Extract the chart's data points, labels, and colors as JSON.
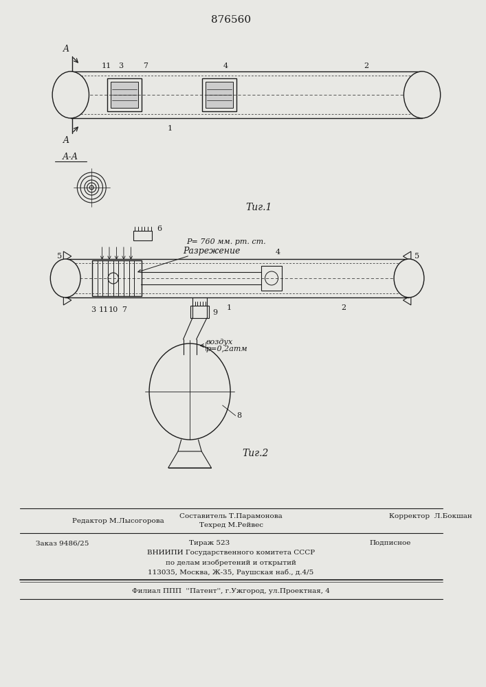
{
  "patent_number": "876560",
  "background_color": "#e8e8e4",
  "line_color": "#1a1a1a",
  "fig_label_1": "Τиг.1",
  "fig_label_2": "Τиг.2",
  "pressure_label": "P= 760 мм. рт. ст.",
  "razr_label": "Разрежение",
  "air_label_1": "воздух",
  "air_label_2": "р=0,2атм",
  "footer_line1": "Составитель Т.Парамонова",
  "footer_line2": "Техред М.Рейвес",
  "footer_line3": "Корректор  Л.Бокшан",
  "footer_editor": "Редактор М.Лысогорова",
  "footer_order": "Заказ 9486/25",
  "footer_tirazh": "Тираж 523",
  "footer_podp": "Подписное",
  "footer_vnipi": "ВНИИПИ Государственного комитета СССР",
  "footer_po": "по делам изобретений и открытий",
  "footer_addr": "113035, Москва, Ж-35, Раушская наб., д.4/5",
  "footer_filial": "Филиал ППП  ''Патент'', г.Ужгород, ул.Проектная, 4"
}
